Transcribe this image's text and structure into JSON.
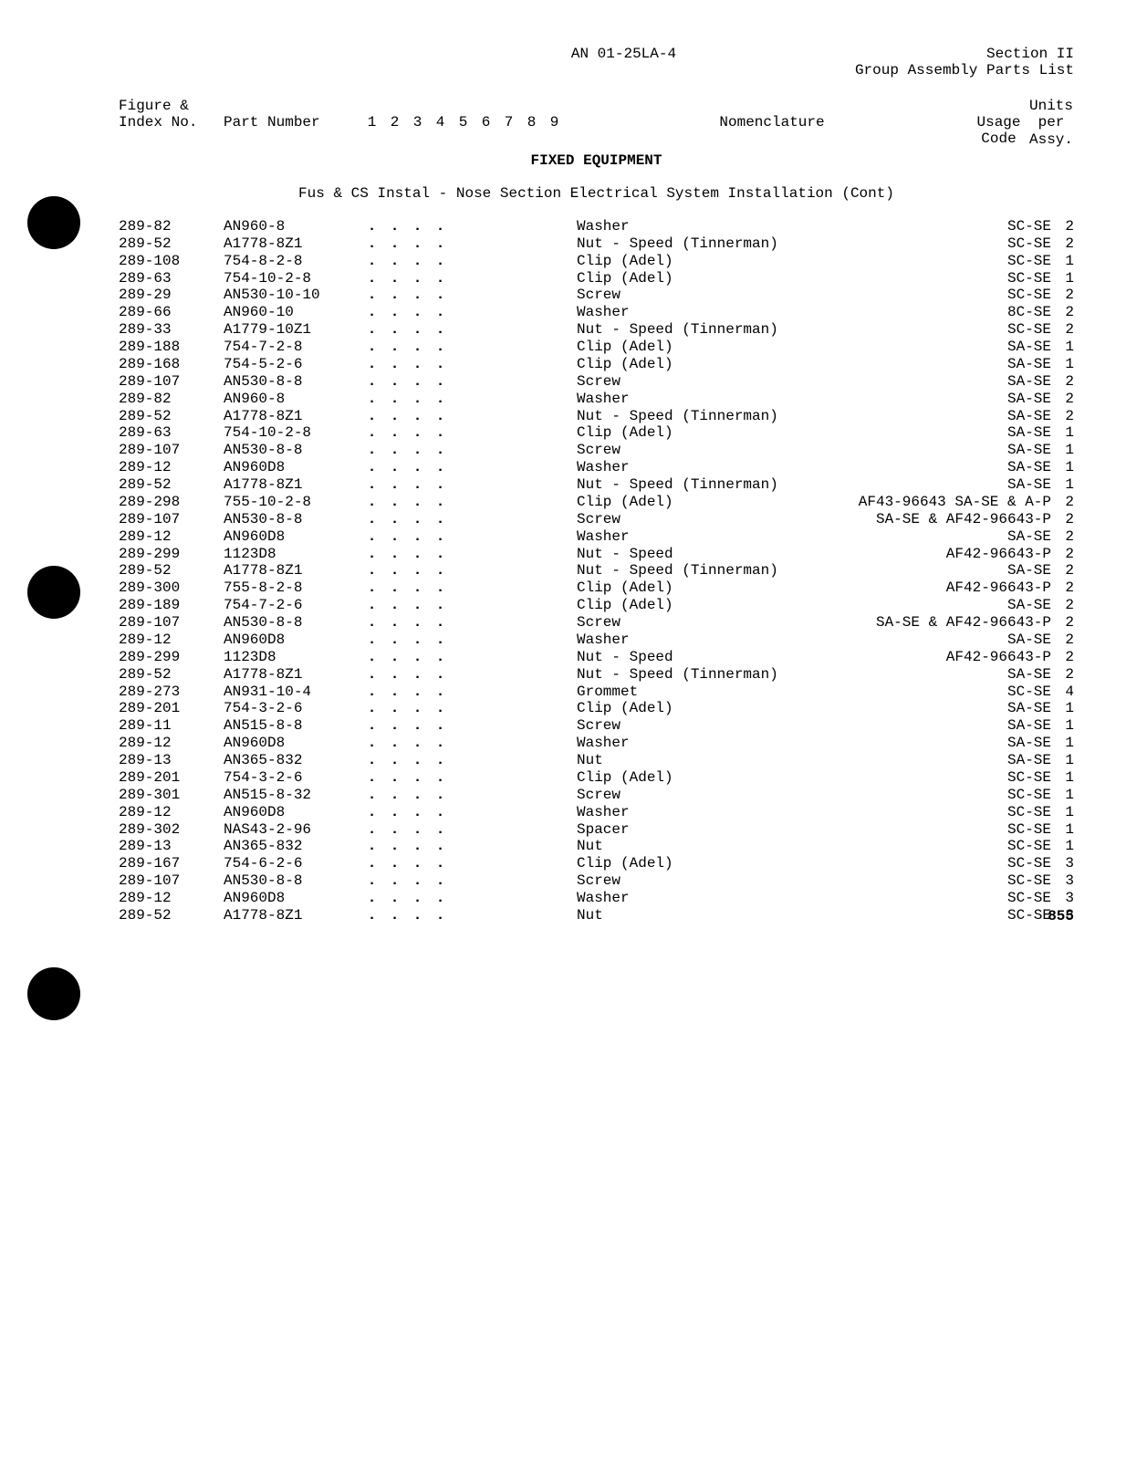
{
  "header": {
    "doc_id": "AN 01-25LA-4",
    "section": "Section II",
    "subtitle": "Group Assembly Parts List"
  },
  "columns": {
    "figure_line1": "Figure &",
    "figure_line2": "Index No.",
    "part": "Part Number",
    "n1": "1",
    "n2": "2",
    "n3": "3",
    "n4": "4",
    "n5": "5",
    "n6": "6",
    "n7": "7",
    "n8": "8",
    "n9": "9",
    "nomenclature": "Nomenclature",
    "usage_line1": "Usage",
    "usage_line2": "Code",
    "units_line1": "Units",
    "units_line2": "per",
    "units_line3": "Assy."
  },
  "section_title": "FIXED EQUIPMENT",
  "subsection_title": "Fus & CS Instal - Nose Section Electrical System Installation (Cont)",
  "rows": [
    {
      "fig": "289-82",
      "part": "AN960-8",
      "nom": "Washer",
      "usage": "SC-SE",
      "units": "2"
    },
    {
      "fig": "289-52",
      "part": "A1778-8Z1",
      "nom": "Nut - Speed (Tinnerman)",
      "usage": "SC-SE",
      "units": "2"
    },
    {
      "fig": "289-108",
      "part": "754-8-2-8",
      "nom": "Clip (Adel)",
      "usage": "SC-SE",
      "units": "1"
    },
    {
      "fig": "289-63",
      "part": "754-10-2-8",
      "nom": "Clip (Adel)",
      "usage": "SC-SE",
      "units": "1"
    },
    {
      "fig": "289-29",
      "part": "AN530-10-10",
      "nom": "Screw",
      "usage": "SC-SE",
      "units": "2"
    },
    {
      "fig": "289-66",
      "part": "AN960-10",
      "nom": "Washer",
      "usage": "8C-SE",
      "units": "2"
    },
    {
      "fig": "289-33",
      "part": "A1779-10Z1",
      "nom": "Nut - Speed (Tinnerman)",
      "usage": "SC-SE",
      "units": "2"
    },
    {
      "fig": "289-188",
      "part": "754-7-2-8",
      "nom": "Clip (Adel)",
      "usage": "SA-SE",
      "units": "1"
    },
    {
      "fig": "289-168",
      "part": "754-5-2-6",
      "nom": "Clip (Adel)",
      "usage": "SA-SE",
      "units": "1"
    },
    {
      "fig": "289-107",
      "part": "AN530-8-8",
      "nom": "Screw",
      "usage": "SA-SE",
      "units": "2"
    },
    {
      "fig": "289-82",
      "part": "AN960-8",
      "nom": "Washer",
      "usage": "SA-SE",
      "units": "2"
    },
    {
      "fig": "289-52",
      "part": "A1778-8Z1",
      "nom": "Nut - Speed (Tinnerman)",
      "usage": "SA-SE",
      "units": "2"
    },
    {
      "fig": "289-63",
      "part": "754-10-2-8",
      "nom": "Clip (Adel)",
      "usage": "SA-SE",
      "units": "1"
    },
    {
      "fig": "289-107",
      "part": "AN530-8-8",
      "nom": "Screw",
      "usage": "SA-SE",
      "units": "1"
    },
    {
      "fig": "289-12",
      "part": "AN960D8",
      "nom": "Washer",
      "usage": "SA-SE",
      "units": "1"
    },
    {
      "fig": "289-52",
      "part": "A1778-8Z1",
      "nom": "Nut - Speed (Tinnerman)",
      "usage": "SA-SE",
      "units": "1"
    },
    {
      "fig": "289-298",
      "part": "755-10-2-8",
      "nom": "Clip (Adel)",
      "usage": "AF43-96643 SA-SE & A-P",
      "units": "2"
    },
    {
      "fig": "289-107",
      "part": "AN530-8-8",
      "nom": "Screw",
      "usage": "SA-SE & AF42-96643-P",
      "units": "2"
    },
    {
      "fig": "289-12",
      "part": "AN960D8",
      "nom": "Washer",
      "usage": "SA-SE",
      "units": "2"
    },
    {
      "fig": "289-299",
      "part": "1123D8",
      "nom": "Nut - Speed",
      "usage": "AF42-96643-P",
      "units": "2"
    },
    {
      "fig": "289-52",
      "part": "A1778-8Z1",
      "nom": "Nut - Speed (Tinnerman)",
      "usage": "SA-SE",
      "units": "2"
    },
    {
      "fig": "289-300",
      "part": "755-8-2-8",
      "nom": "Clip (Adel)",
      "usage": "AF42-96643-P",
      "units": "2"
    },
    {
      "fig": "289-189",
      "part": "754-7-2-6",
      "nom": "Clip (Adel)",
      "usage": "SA-SE",
      "units": "2"
    },
    {
      "fig": "289-107",
      "part": "AN530-8-8",
      "nom": "Screw",
      "usage": "SA-SE & AF42-96643-P",
      "units": "2"
    },
    {
      "fig": "289-12",
      "part": "AN960D8",
      "nom": "Washer",
      "usage": "SA-SE",
      "units": "2"
    },
    {
      "fig": "289-299",
      "part": "1123D8",
      "nom": "Nut - Speed",
      "usage": "AF42-96643-P",
      "units": "2"
    },
    {
      "fig": "289-52",
      "part": "A1778-8Z1",
      "nom": "Nut - Speed (Tinnerman)",
      "usage": "SA-SE",
      "units": "2"
    },
    {
      "fig": "289-273",
      "part": "AN931-10-4",
      "nom": "Grommet",
      "usage": "SC-SE",
      "units": "4"
    },
    {
      "fig": "289-201",
      "part": "754-3-2-6",
      "nom": "Clip (Adel)",
      "usage": "SA-SE",
      "units": "1"
    },
    {
      "fig": "289-11",
      "part": "AN515-8-8",
      "nom": "Screw",
      "usage": "SA-SE",
      "units": "1"
    },
    {
      "fig": "289-12",
      "part": "AN960D8",
      "nom": "Washer",
      "usage": "SA-SE",
      "units": "1"
    },
    {
      "fig": "289-13",
      "part": "AN365-832",
      "nom": "Nut",
      "usage": "SA-SE",
      "units": "1"
    },
    {
      "fig": "289-201",
      "part": "754-3-2-6",
      "nom": "Clip (Adel)",
      "usage": "SC-SE",
      "units": "1"
    },
    {
      "fig": "289-301",
      "part": "AN515-8-32",
      "nom": "Screw",
      "usage": "SC-SE",
      "units": "1"
    },
    {
      "fig": "289-12",
      "part": "AN960D8",
      "nom": "Washer",
      "usage": "SC-SE",
      "units": "1"
    },
    {
      "fig": "289-302",
      "part": "NAS43-2-96",
      "nom": "Spacer",
      "usage": "SC-SE",
      "units": "1"
    },
    {
      "fig": "289-13",
      "part": "AN365-832",
      "nom": "Nut",
      "usage": "SC-SE",
      "units": "1"
    },
    {
      "fig": "289-167",
      "part": "754-6-2-6",
      "nom": "Clip (Adel)",
      "usage": "SC-SE",
      "units": "3"
    },
    {
      "fig": "289-107",
      "part": "AN530-8-8",
      "nom": "Screw",
      "usage": "SC-SE",
      "units": "3"
    },
    {
      "fig": "289-12",
      "part": "AN960D8",
      "nom": "Washer",
      "usage": "SC-SE",
      "units": "3"
    },
    {
      "fig": "289-52",
      "part": "A1778-8Z1",
      "nom": "Nut",
      "usage": "SC-SE",
      "units": "3"
    }
  ],
  "page_number": "855"
}
